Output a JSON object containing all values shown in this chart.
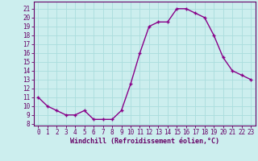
{
  "x": [
    0,
    1,
    2,
    3,
    4,
    5,
    6,
    7,
    8,
    9,
    10,
    11,
    12,
    13,
    14,
    15,
    16,
    17,
    18,
    19,
    20,
    21,
    22,
    23
  ],
  "y": [
    11,
    10,
    9.5,
    9,
    9,
    9.5,
    8.5,
    8.5,
    8.5,
    9.5,
    12.5,
    16,
    19,
    19.5,
    19.5,
    21,
    21,
    20.5,
    20,
    18,
    15.5,
    14,
    13.5,
    13
  ],
  "line_color": "#880088",
  "marker": "+",
  "marker_color": "#880088",
  "marker_size": 3.5,
  "marker_linewidth": 1.0,
  "linewidth": 1.0,
  "background_color": "#cceeee",
  "grid_color": "#aadddd",
  "xlabel": "Windchill (Refroidissement éolien,°C)",
  "xlabel_fontsize": 6.0,
  "ylabel_ticks": [
    8,
    9,
    10,
    11,
    12,
    13,
    14,
    15,
    16,
    17,
    18,
    19,
    20,
    21
  ],
  "ylim": [
    7.8,
    21.8
  ],
  "xlim": [
    -0.5,
    23.5
  ],
  "xtick_labels": [
    "0",
    "1",
    "2",
    "3",
    "4",
    "5",
    "6",
    "7",
    "8",
    "9",
    "10",
    "11",
    "12",
    "13",
    "14",
    "15",
    "16",
    "17",
    "18",
    "19",
    "20",
    "21",
    "22",
    "23"
  ],
  "tick_fontsize": 5.5,
  "label_color": "#660066"
}
